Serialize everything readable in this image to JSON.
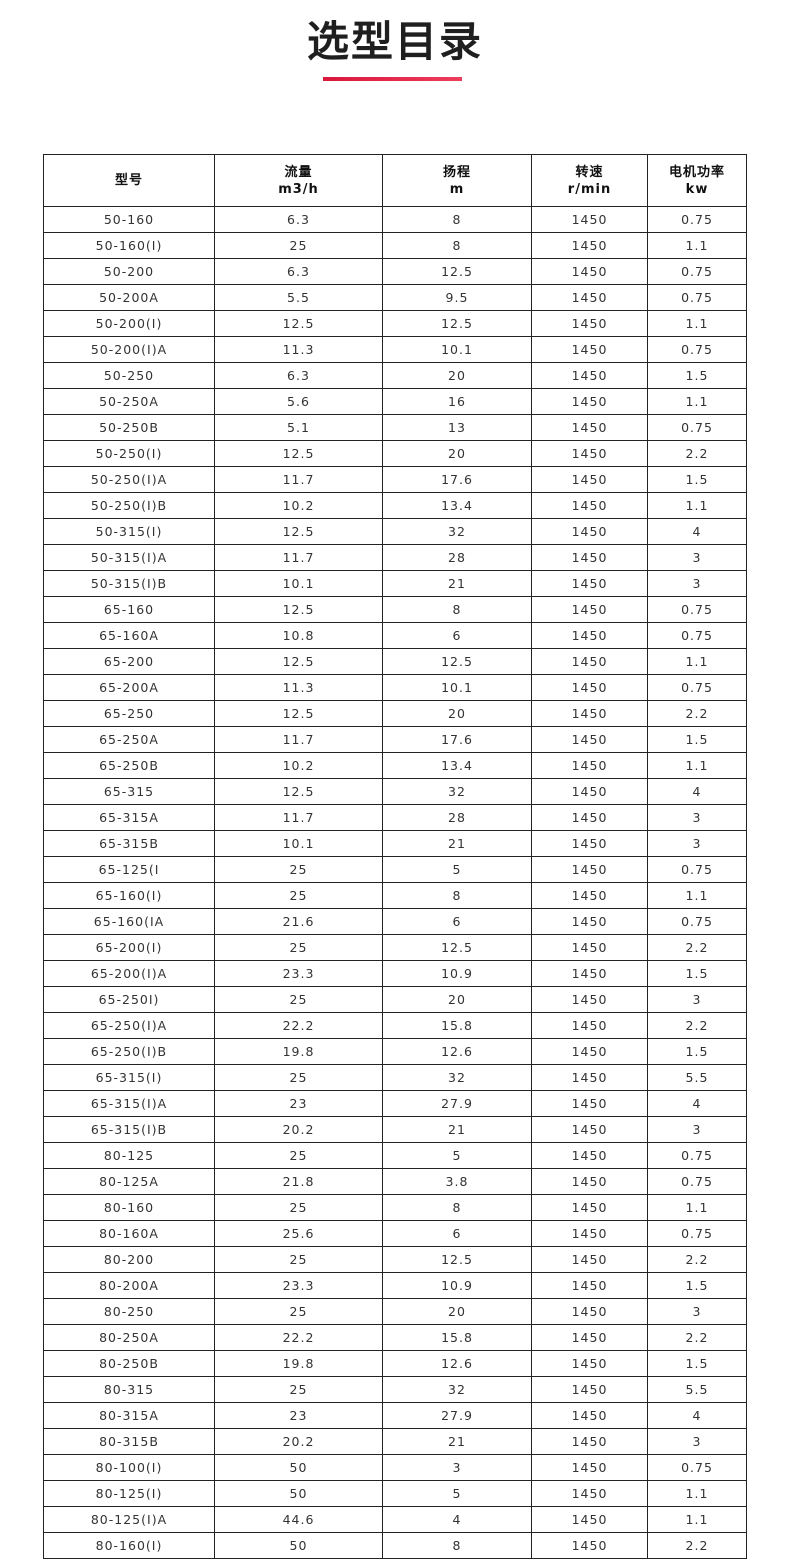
{
  "title": "选型目录",
  "accent_color": "#e0243f",
  "table": {
    "headers": [
      {
        "name": "型号",
        "unit": ""
      },
      {
        "name": "流量",
        "unit": "m3/h"
      },
      {
        "name": "扬程",
        "unit": "m"
      },
      {
        "name": "转速",
        "unit": "r/min"
      },
      {
        "name": "电机功率",
        "unit": "kw"
      }
    ],
    "rows": [
      [
        "50-160",
        "6.3",
        "8",
        "1450",
        "0.75"
      ],
      [
        "50-160(I)",
        "25",
        "8",
        "1450",
        "1.1"
      ],
      [
        "50-200",
        "6.3",
        "12.5",
        "1450",
        "0.75"
      ],
      [
        "50-200A",
        "5.5",
        "9.5",
        "1450",
        "0.75"
      ],
      [
        "50-200(I)",
        "12.5",
        "12.5",
        "1450",
        "1.1"
      ],
      [
        "50-200(I)A",
        "11.3",
        "10.1",
        "1450",
        "0.75"
      ],
      [
        "50-250",
        "6.3",
        "20",
        "1450",
        "1.5"
      ],
      [
        "50-250A",
        "5.6",
        "16",
        "1450",
        "1.1"
      ],
      [
        "50-250B",
        "5.1",
        "13",
        "1450",
        "0.75"
      ],
      [
        "50-250(I)",
        "12.5",
        "20",
        "1450",
        "2.2"
      ],
      [
        "50-250(I)A",
        "11.7",
        "17.6",
        "1450",
        "1.5"
      ],
      [
        "50-250(I)B",
        "10.2",
        "13.4",
        "1450",
        "1.1"
      ],
      [
        "50-315(I)",
        "12.5",
        "32",
        "1450",
        "4"
      ],
      [
        "50-315(I)A",
        "11.7",
        "28",
        "1450",
        "3"
      ],
      [
        "50-315(I)B",
        "10.1",
        "21",
        "1450",
        "3"
      ],
      [
        "65-160",
        "12.5",
        "8",
        "1450",
        "0.75"
      ],
      [
        "65-160A",
        "10.8",
        "6",
        "1450",
        "0.75"
      ],
      [
        "65-200",
        "12.5",
        "12.5",
        "1450",
        "1.1"
      ],
      [
        "65-200A",
        "11.3",
        "10.1",
        "1450",
        "0.75"
      ],
      [
        "65-250",
        "12.5",
        "20",
        "1450",
        "2.2"
      ],
      [
        "65-250A",
        "11.7",
        "17.6",
        "1450",
        "1.5"
      ],
      [
        "65-250B",
        "10.2",
        "13.4",
        "1450",
        "1.1"
      ],
      [
        "65-315",
        "12.5",
        "32",
        "1450",
        "4"
      ],
      [
        "65-315A",
        "11.7",
        "28",
        "1450",
        "3"
      ],
      [
        "65-315B",
        "10.1",
        "21",
        "1450",
        "3"
      ],
      [
        "65-125(I",
        "25",
        "5",
        "1450",
        "0.75"
      ],
      [
        "65-160(I)",
        "25",
        "8",
        "1450",
        "1.1"
      ],
      [
        "65-160(IA",
        "21.6",
        "6",
        "1450",
        "0.75"
      ],
      [
        "65-200(I)",
        "25",
        "12.5",
        "1450",
        "2.2"
      ],
      [
        "65-200(I)A",
        "23.3",
        "10.9",
        "1450",
        "1.5"
      ],
      [
        "65-250I)",
        "25",
        "20",
        "1450",
        "3"
      ],
      [
        "65-250(I)A",
        "22.2",
        "15.8",
        "1450",
        "2.2"
      ],
      [
        "65-250(I)B",
        "19.8",
        "12.6",
        "1450",
        "1.5"
      ],
      [
        "65-315(I)",
        "25",
        "32",
        "1450",
        "5.5"
      ],
      [
        "65-315(I)A",
        "23",
        "27.9",
        "1450",
        "4"
      ],
      [
        "65-315(I)B",
        "20.2",
        "21",
        "1450",
        "3"
      ],
      [
        "80-125",
        "25",
        "5",
        "1450",
        "0.75"
      ],
      [
        "80-125A",
        "21.8",
        "3.8",
        "1450",
        "0.75"
      ],
      [
        "80-160",
        "25",
        "8",
        "1450",
        "1.1"
      ],
      [
        "80-160A",
        "25.6",
        "6",
        "1450",
        "0.75"
      ],
      [
        "80-200",
        "25",
        "12.5",
        "1450",
        "2.2"
      ],
      [
        "80-200A",
        "23.3",
        "10.9",
        "1450",
        "1.5"
      ],
      [
        "80-250",
        "25",
        "20",
        "1450",
        "3"
      ],
      [
        "80-250A",
        "22.2",
        "15.8",
        "1450",
        "2.2"
      ],
      [
        "80-250B",
        "19.8",
        "12.6",
        "1450",
        "1.5"
      ],
      [
        "80-315",
        "25",
        "32",
        "1450",
        "5.5"
      ],
      [
        "80-315A",
        "23",
        "27.9",
        "1450",
        "4"
      ],
      [
        "80-315B",
        "20.2",
        "21",
        "1450",
        "3"
      ],
      [
        "80-100(I)",
        "50",
        "3",
        "1450",
        "0.75"
      ],
      [
        "80-125(I)",
        "50",
        "5",
        "1450",
        "1.1"
      ],
      [
        "80-125(I)A",
        "44.6",
        "4",
        "1450",
        "1.1"
      ],
      [
        "80-160(I)",
        "50",
        "8",
        "1450",
        "2.2"
      ]
    ]
  }
}
